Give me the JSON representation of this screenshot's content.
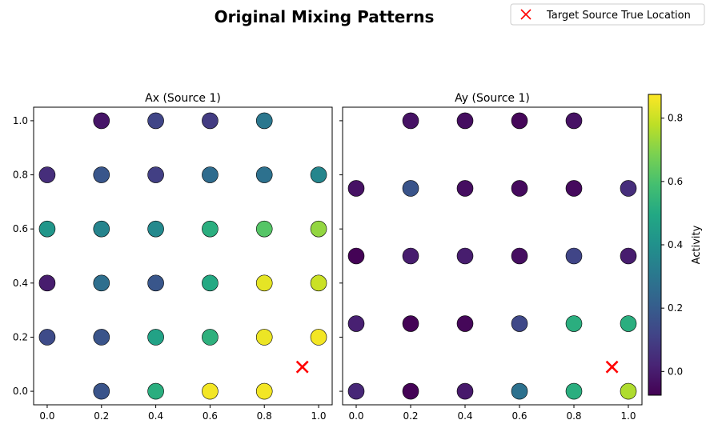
{
  "chart_data": {
    "type": "scatter",
    "title": "Original Mixing Patterns",
    "legend": {
      "label": "Target Source True Location",
      "placement": "top-right",
      "marker": "x",
      "color": "#ff0000"
    },
    "colorbar": {
      "label": "Activity",
      "colormap": "viridis",
      "range": [
        -0.075,
        0.875
      ],
      "ticks": [
        0.0,
        0.2,
        0.4,
        0.6,
        0.8
      ],
      "tick_labels": [
        "0.0",
        "0.2",
        "0.4",
        "0.6",
        "0.8"
      ]
    },
    "panels": [
      {
        "title": "Ax (Source 1)",
        "xlim": [
          -0.05,
          1.05
        ],
        "ylim": [
          -0.05,
          1.05
        ],
        "xticks": [
          "0.0",
          "0.2",
          "0.4",
          "0.6",
          "0.8",
          "1.0"
        ],
        "yticks": [
          "0.0",
          "0.2",
          "0.4",
          "0.6",
          "0.8",
          "1.0"
        ],
        "target": {
          "x": 0.94,
          "y": 0.09
        },
        "points": [
          {
            "x": 0.2,
            "y": 1.0,
            "v": -0.02
          },
          {
            "x": 0.4,
            "y": 1.0,
            "v": 0.12
          },
          {
            "x": 0.6,
            "y": 1.0,
            "v": 0.09
          },
          {
            "x": 0.8,
            "y": 1.0,
            "v": 0.3
          },
          {
            "x": 0.0,
            "y": 0.8,
            "v": 0.05
          },
          {
            "x": 0.2,
            "y": 0.8,
            "v": 0.18
          },
          {
            "x": 0.4,
            "y": 0.8,
            "v": 0.1
          },
          {
            "x": 0.6,
            "y": 0.8,
            "v": 0.26
          },
          {
            "x": 0.8,
            "y": 0.8,
            "v": 0.28
          },
          {
            "x": 1.0,
            "y": 0.8,
            "v": 0.36
          },
          {
            "x": 0.0,
            "y": 0.6,
            "v": 0.42
          },
          {
            "x": 0.2,
            "y": 0.6,
            "v": 0.35
          },
          {
            "x": 0.4,
            "y": 0.6,
            "v": 0.37
          },
          {
            "x": 0.6,
            "y": 0.6,
            "v": 0.52
          },
          {
            "x": 0.8,
            "y": 0.6,
            "v": 0.62
          },
          {
            "x": 1.0,
            "y": 0.6,
            "v": 0.72
          },
          {
            "x": 0.0,
            "y": 0.4,
            "v": 0.0
          },
          {
            "x": 0.2,
            "y": 0.4,
            "v": 0.27
          },
          {
            "x": 0.4,
            "y": 0.4,
            "v": 0.18
          },
          {
            "x": 0.6,
            "y": 0.4,
            "v": 0.5
          },
          {
            "x": 0.8,
            "y": 0.4,
            "v": 0.84
          },
          {
            "x": 1.0,
            "y": 0.4,
            "v": 0.8
          },
          {
            "x": 0.0,
            "y": 0.2,
            "v": 0.14
          },
          {
            "x": 0.2,
            "y": 0.2,
            "v": 0.17
          },
          {
            "x": 0.4,
            "y": 0.2,
            "v": 0.47
          },
          {
            "x": 0.6,
            "y": 0.2,
            "v": 0.53
          },
          {
            "x": 0.8,
            "y": 0.2,
            "v": 0.85
          },
          {
            "x": 1.0,
            "y": 0.2,
            "v": 0.86
          },
          {
            "x": 0.2,
            "y": 0.0,
            "v": 0.17
          },
          {
            "x": 0.4,
            "y": 0.0,
            "v": 0.52
          },
          {
            "x": 0.6,
            "y": 0.0,
            "v": 0.86
          },
          {
            "x": 0.8,
            "y": 0.0,
            "v": 0.86
          }
        ]
      },
      {
        "title": "Ay (Source 1)",
        "xlim": [
          -0.05,
          1.05
        ],
        "ylim": [
          -0.05,
          1.05
        ],
        "xticks": [
          "0.0",
          "0.2",
          "0.4",
          "0.6",
          "0.8",
          "1.0"
        ],
        "yticks": [],
        "target": {
          "x": 0.94,
          "y": 0.09
        },
        "points": [
          {
            "x": 0.2,
            "y": 1.0,
            "v": -0.03
          },
          {
            "x": 0.4,
            "y": 1.0,
            "v": -0.04
          },
          {
            "x": 0.6,
            "y": 1.0,
            "v": -0.06
          },
          {
            "x": 0.8,
            "y": 1.0,
            "v": -0.03
          },
          {
            "x": 0.0,
            "y": 0.75,
            "v": -0.03
          },
          {
            "x": 0.2,
            "y": 0.75,
            "v": 0.17
          },
          {
            "x": 0.4,
            "y": 0.75,
            "v": -0.04
          },
          {
            "x": 0.6,
            "y": 0.75,
            "v": -0.05
          },
          {
            "x": 0.8,
            "y": 0.75,
            "v": -0.05
          },
          {
            "x": 1.0,
            "y": 0.75,
            "v": 0.05
          },
          {
            "x": 0.0,
            "y": 0.5,
            "v": -0.07
          },
          {
            "x": 0.2,
            "y": 0.5,
            "v": 0.0
          },
          {
            "x": 0.4,
            "y": 0.5,
            "v": 0.0
          },
          {
            "x": 0.6,
            "y": 0.5,
            "v": -0.04
          },
          {
            "x": 0.8,
            "y": 0.5,
            "v": 0.12
          },
          {
            "x": 1.0,
            "y": 0.5,
            "v": 0.0
          },
          {
            "x": 0.0,
            "y": 0.25,
            "v": 0.01
          },
          {
            "x": 0.2,
            "y": 0.25,
            "v": -0.07
          },
          {
            "x": 0.4,
            "y": 0.25,
            "v": -0.06
          },
          {
            "x": 0.6,
            "y": 0.25,
            "v": 0.13
          },
          {
            "x": 0.8,
            "y": 0.25,
            "v": 0.52
          },
          {
            "x": 1.0,
            "y": 0.25,
            "v": 0.52
          },
          {
            "x": 0.0,
            "y": 0.0,
            "v": 0.03
          },
          {
            "x": 0.2,
            "y": 0.0,
            "v": -0.07
          },
          {
            "x": 0.4,
            "y": 0.0,
            "v": -0.01
          },
          {
            "x": 0.6,
            "y": 0.0,
            "v": 0.28
          },
          {
            "x": 0.8,
            "y": 0.0,
            "v": 0.52
          },
          {
            "x": 1.0,
            "y": 0.0,
            "v": 0.76
          }
        ]
      }
    ]
  }
}
